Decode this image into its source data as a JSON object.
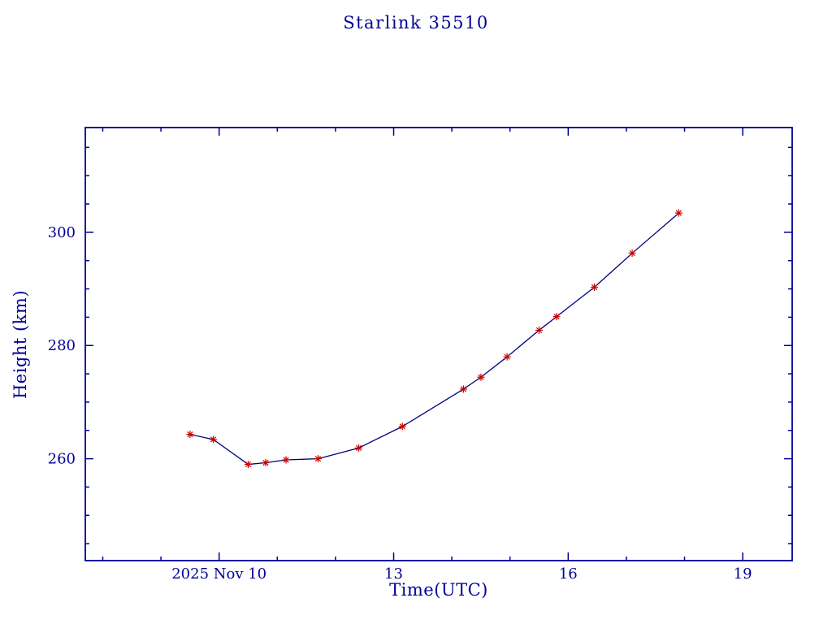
{
  "page": {
    "background": "#ffffff"
  },
  "chart_data": {
    "type": "line",
    "title": "Starlink 35510",
    "xlabel": "Time(UTC)",
    "ylabel": "Height (km)",
    "x": [
      9.5,
      9.9,
      10.5,
      10.8,
      11.15,
      11.7,
      12.4,
      13.15,
      14.2,
      14.5,
      14.95,
      15.5,
      15.8,
      16.45,
      17.1,
      17.9
    ],
    "y": [
      264.3,
      263.4,
      259.0,
      259.3,
      259.8,
      260.0,
      261.9,
      265.7,
      272.3,
      274.4,
      278.0,
      282.7,
      285.1,
      290.3,
      296.3,
      303.4
    ],
    "xlim": [
      7.7,
      19.85
    ],
    "ylim": [
      242.0,
      318.5
    ],
    "x_major_ticks": [
      10,
      13,
      16,
      19
    ],
    "x_tick_labels": [
      "2025 Nov 10",
      "13",
      "16",
      "19"
    ],
    "x_minor_tick_step": 1,
    "y_major_ticks": [
      260,
      280,
      300
    ],
    "y_tick_labels": [
      "260",
      "280",
      "300"
    ],
    "y_minor_tick_step": 5,
    "grid": false,
    "legend": null,
    "marker": "asterisk",
    "colors": {
      "axis": "#000099",
      "text": "#000099",
      "line": "#000080",
      "marker": "#cc0000"
    }
  }
}
